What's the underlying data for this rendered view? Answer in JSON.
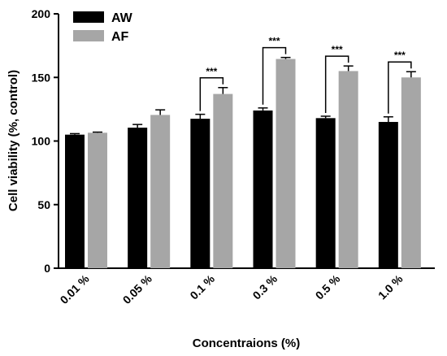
{
  "chart_data": {
    "type": "bar",
    "xlabel": "Concentraions (%)",
    "ylabel": "Cell viability (%, control)",
    "categories": [
      "0.01 %",
      "0.05 %",
      "0.1 %",
      "0.3 %",
      "0.5 %",
      "1.0 %"
    ],
    "ylim": [
      0,
      200
    ],
    "yticks": [
      "0",
      "50",
      "100",
      "150",
      "200"
    ],
    "series": [
      {
        "name": "AW",
        "color": "#000000",
        "values": [
          105,
          110.5,
          117.5,
          124,
          118,
          115
        ],
        "errors": [
          0.8,
          2.5,
          3.5,
          2,
          1.5,
          4
        ]
      },
      {
        "name": "AF",
        "color": "#a6a6a6",
        "values": [
          106.5,
          120.5,
          137,
          164.5,
          155,
          150
        ],
        "errors": [
          0.5,
          4,
          5,
          1.2,
          4,
          4.5
        ]
      }
    ],
    "significance": [
      {
        "category": "0.1 %",
        "label": "***"
      },
      {
        "category": "0.3 %",
        "label": "***"
      },
      {
        "category": "0.5 %",
        "label": "***"
      },
      {
        "category": "1.0 %",
        "label": "***"
      }
    ],
    "legend_position": "top-left",
    "grid": false
  }
}
